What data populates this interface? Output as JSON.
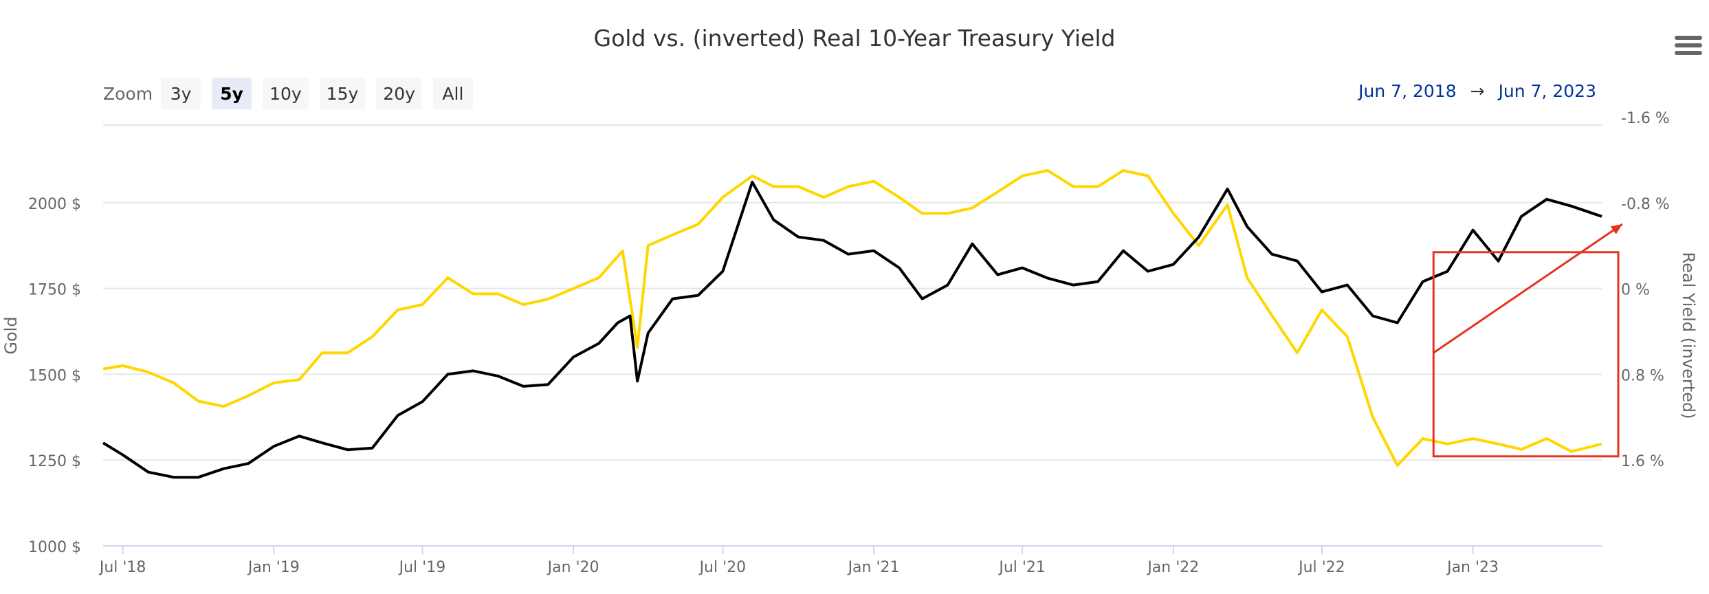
{
  "header": {
    "title": "Gold vs. (inverted) Real 10-Year Treasury Yield"
  },
  "zoom": {
    "label": "Zoom",
    "buttons": [
      "3y",
      "5y",
      "10y",
      "15y",
      "20y",
      "All"
    ],
    "active": "5y"
  },
  "range": {
    "from": "Jun 7, 2018",
    "arrow": "→",
    "to": "Jun 7, 2023"
  },
  "colors": {
    "gold": "#000000",
    "real_yield": "#ffd700",
    "annotation": "#e8321e",
    "grid": "#e6e6e6"
  },
  "chart_data": {
    "type": "line",
    "title": "Gold vs. (inverted) Real 10-Year Treasury Yield",
    "x_axis": {
      "ticks": [
        "Jul '18",
        "Jan '19",
        "Jul '19",
        "Jan '20",
        "Jul '20",
        "Jan '21",
        "Jul '21",
        "Jan '22",
        "Jul '22",
        "Jan '23"
      ],
      "range": [
        "2018-06-07",
        "2023-06-07"
      ]
    },
    "y_left": {
      "label": "Gold",
      "ticks": [
        "1000 $",
        "1250 $",
        "1500 $",
        "1750 $",
        "2000 $"
      ],
      "range": [
        1000,
        2250
      ]
    },
    "y_right": {
      "label": "Real Yield (inverted)",
      "ticks": [
        "-1.6 %",
        "-0.8 %",
        "0 %",
        "0.8 %",
        "1.6 %"
      ],
      "range": [
        2.4,
        -1.6
      ],
      "reversed": true
    },
    "grid": true,
    "series": [
      {
        "name": "Gold",
        "axis": "left",
        "x": [
          "2018-06-07",
          "2018-07-01",
          "2018-08-01",
          "2018-09-01",
          "2018-10-01",
          "2018-11-01",
          "2018-12-01",
          "2019-01-01",
          "2019-02-01",
          "2019-03-01",
          "2019-04-01",
          "2019-05-01",
          "2019-06-01",
          "2019-07-01",
          "2019-08-01",
          "2019-09-01",
          "2019-10-01",
          "2019-11-01",
          "2019-12-01",
          "2020-01-01",
          "2020-02-01",
          "2020-02-24",
          "2020-03-10",
          "2020-03-19",
          "2020-04-01",
          "2020-05-01",
          "2020-06-01",
          "2020-07-01",
          "2020-08-06",
          "2020-09-01",
          "2020-10-01",
          "2020-11-01",
          "2020-12-01",
          "2021-01-01",
          "2021-02-01",
          "2021-03-01",
          "2021-04-01",
          "2021-05-01",
          "2021-06-01",
          "2021-07-01",
          "2021-08-01",
          "2021-09-01",
          "2021-10-01",
          "2021-11-01",
          "2021-12-01",
          "2022-01-01",
          "2022-02-01",
          "2022-03-08",
          "2022-04-01",
          "2022-05-01",
          "2022-06-01",
          "2022-07-01",
          "2022-08-01",
          "2022-09-01",
          "2022-10-01",
          "2022-11-01",
          "2022-12-01",
          "2023-01-01",
          "2023-02-01",
          "2023-03-01",
          "2023-04-01",
          "2023-05-01",
          "2023-06-07"
        ],
        "values": [
          1300,
          1265,
          1215,
          1200,
          1200,
          1225,
          1240,
          1290,
          1320,
          1300,
          1280,
          1285,
          1380,
          1420,
          1500,
          1510,
          1495,
          1465,
          1470,
          1550,
          1590,
          1650,
          1670,
          1480,
          1620,
          1720,
          1730,
          1800,
          2060,
          1950,
          1900,
          1890,
          1850,
          1860,
          1810,
          1720,
          1760,
          1880,
          1790,
          1810,
          1780,
          1760,
          1770,
          1860,
          1800,
          1820,
          1900,
          2040,
          1930,
          1850,
          1830,
          1740,
          1760,
          1670,
          1650,
          1770,
          1800,
          1920,
          1830,
          1960,
          2010,
          1990,
          1960
        ],
        "note": "black line"
      },
      {
        "name": "Real Yield (inverted)",
        "axis": "right",
        "x": [
          "2018-06-07",
          "2018-07-01",
          "2018-08-01",
          "2018-09-01",
          "2018-10-01",
          "2018-11-01",
          "2018-12-01",
          "2019-01-01",
          "2019-02-01",
          "2019-03-01",
          "2019-04-01",
          "2019-05-01",
          "2019-06-01",
          "2019-07-01",
          "2019-08-01",
          "2019-09-01",
          "2019-10-01",
          "2019-11-01",
          "2019-12-01",
          "2020-01-01",
          "2020-02-01",
          "2020-03-01",
          "2020-03-19",
          "2020-04-01",
          "2020-05-01",
          "2020-06-01",
          "2020-07-01",
          "2020-08-06",
          "2020-09-01",
          "2020-10-01",
          "2020-11-01",
          "2020-12-01",
          "2021-01-01",
          "2021-02-01",
          "2021-03-01",
          "2021-04-01",
          "2021-05-01",
          "2021-06-01",
          "2021-07-01",
          "2021-08-01",
          "2021-09-01",
          "2021-10-01",
          "2021-11-01",
          "2021-12-01",
          "2022-01-01",
          "2022-02-01",
          "2022-03-08",
          "2022-04-01",
          "2022-05-01",
          "2022-06-01",
          "2022-07-01",
          "2022-08-01",
          "2022-09-01",
          "2022-10-01",
          "2022-11-01",
          "2022-12-01",
          "2023-01-01",
          "2023-02-01",
          "2023-03-01",
          "2023-04-01",
          "2023-05-01",
          "2023-06-07"
        ],
        "values": [
          0.75,
          0.72,
          0.78,
          0.88,
          1.05,
          1.1,
          1.0,
          0.88,
          0.85,
          0.6,
          0.6,
          0.45,
          0.2,
          0.15,
          -0.1,
          0.05,
          0.05,
          0.15,
          0.1,
          0.0,
          -0.1,
          -0.35,
          0.55,
          -0.4,
          -0.5,
          -0.6,
          -0.85,
          -1.05,
          -0.95,
          -0.95,
          -0.85,
          -0.95,
          -1.0,
          -0.85,
          -0.7,
          -0.7,
          -0.75,
          -0.9,
          -1.05,
          -1.1,
          -0.95,
          -0.95,
          -1.1,
          -1.05,
          -0.7,
          -0.4,
          -0.78,
          -0.1,
          0.25,
          0.6,
          0.2,
          0.45,
          1.2,
          1.65,
          1.4,
          1.45,
          1.4,
          1.45,
          1.5,
          1.4,
          1.52,
          1.45
        ],
        "note": "yellow line"
      }
    ],
    "annotations": [
      {
        "type": "arrow",
        "color": "red",
        "from": {
          "x": "2022-11-14",
          "y_right": 0.6
        },
        "to": {
          "x": "2023-06-07",
          "y_right": -0.6
        }
      },
      {
        "type": "box",
        "color": "red",
        "x": [
          "2022-11-14",
          "2023-06-07"
        ],
        "y_right": [
          1.2,
          1.95
        ]
      }
    ]
  }
}
